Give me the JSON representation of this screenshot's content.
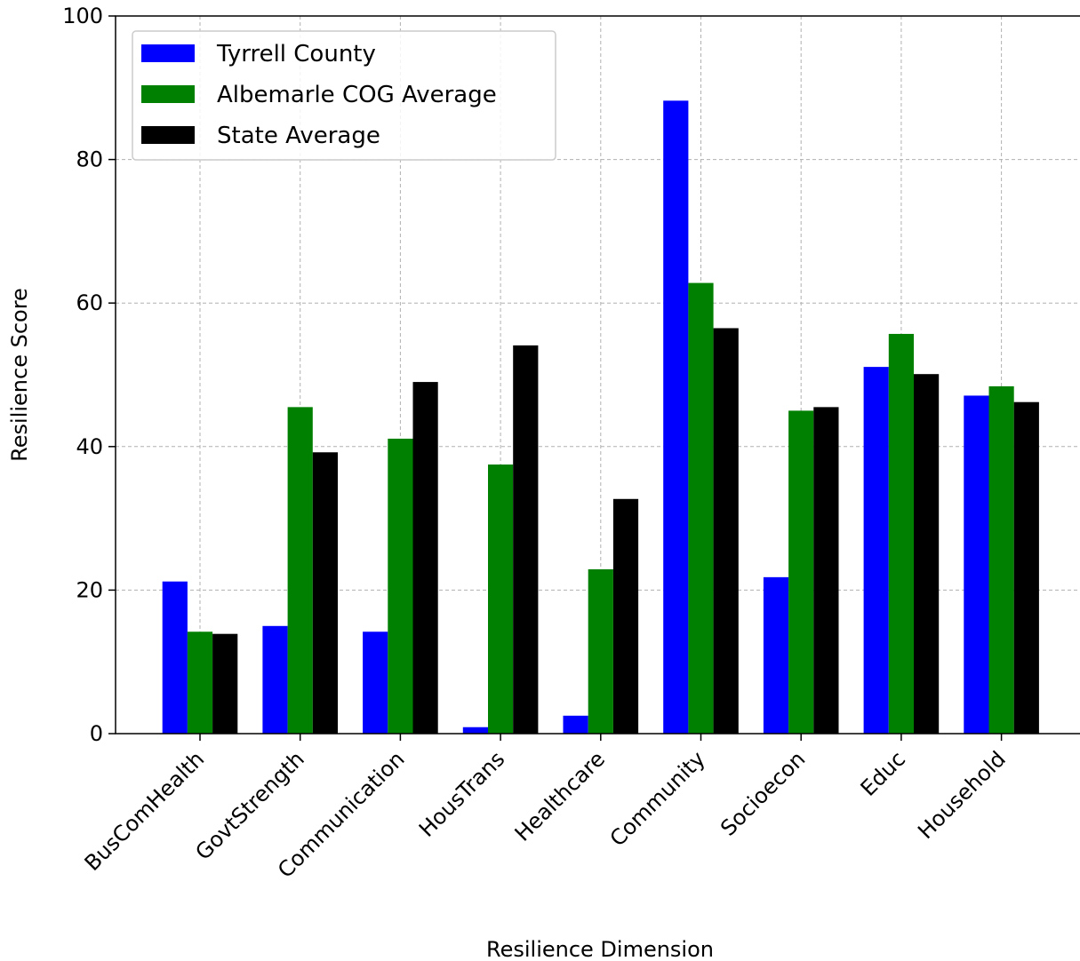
{
  "chart_data": {
    "type": "bar",
    "title": "",
    "xlabel": "Resilience Dimension",
    "ylabel": "Resilience Score",
    "ylim": [
      0,
      100
    ],
    "yticks": [
      "0",
      "20",
      "40",
      "60",
      "80",
      "100"
    ],
    "grid": true,
    "legend_position": "top-left",
    "categories": [
      "BusComHealth",
      "GovtStrength",
      "Communication",
      "HousTrans",
      "Healthcare",
      "Community",
      "Socioecon",
      "Educ",
      "Household"
    ],
    "series": [
      {
        "name": "Tyrrell County",
        "color": "#0000ff",
        "values": [
          21.2,
          15.0,
          14.2,
          0.9,
          2.5,
          88.2,
          21.8,
          51.1,
          47.1
        ]
      },
      {
        "name": "Albemarle COG Average",
        "color": "#008000",
        "values": [
          14.2,
          45.5,
          41.1,
          37.5,
          22.9,
          62.8,
          45.0,
          55.7,
          48.4
        ]
      },
      {
        "name": "State Average",
        "color": "#000000",
        "values": [
          13.9,
          39.2,
          49.0,
          54.1,
          32.7,
          56.5,
          45.5,
          50.1,
          46.2
        ]
      }
    ]
  }
}
